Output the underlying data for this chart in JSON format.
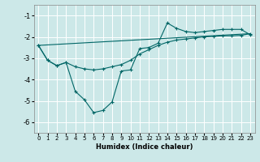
{
  "xlabel": "Humidex (Indice chaleur)",
  "bg_color": "#cce8e8",
  "line_color": "#006666",
  "grid_color": "#ffffff",
  "xlim": [
    -0.5,
    23.5
  ],
  "ylim": [
    -6.5,
    -0.5
  ],
  "yticks": [
    -6,
    -5,
    -4,
    -3,
    -2,
    -1
  ],
  "xticks": [
    0,
    1,
    2,
    3,
    4,
    5,
    6,
    7,
    8,
    9,
    10,
    11,
    12,
    13,
    14,
    15,
    16,
    17,
    18,
    19,
    20,
    21,
    22,
    23
  ],
  "line1_x": [
    0,
    1,
    2,
    3,
    4,
    5,
    6,
    7,
    8,
    9,
    10,
    11,
    12,
    13,
    14,
    15,
    16,
    17,
    18,
    19,
    20,
    21,
    22,
    23
  ],
  "line1_y": [
    -2.4,
    -3.1,
    -3.35,
    -3.2,
    -4.55,
    -4.95,
    -5.55,
    -5.45,
    -5.05,
    -3.6,
    -3.55,
    -2.55,
    -2.5,
    -2.3,
    -1.35,
    -1.6,
    -1.75,
    -1.8,
    -1.75,
    -1.7,
    -1.65,
    -1.65,
    -1.65,
    -1.9
  ],
  "line2_x": [
    0,
    1,
    2,
    3,
    4,
    5,
    6,
    7,
    8,
    9,
    10,
    11,
    12,
    13,
    14,
    15,
    16,
    17,
    18,
    19,
    20,
    21,
    22,
    23
  ],
  "line2_y": [
    -2.4,
    -3.1,
    -3.35,
    -3.2,
    -3.4,
    -3.5,
    -3.55,
    -3.5,
    -3.4,
    -3.3,
    -3.1,
    -2.8,
    -2.6,
    -2.4,
    -2.25,
    -2.15,
    -2.1,
    -2.05,
    -2.0,
    -1.98,
    -1.95,
    -1.95,
    -1.93,
    -1.85
  ],
  "line3_x": [
    0,
    23
  ],
  "line3_y": [
    -2.4,
    -1.85
  ]
}
